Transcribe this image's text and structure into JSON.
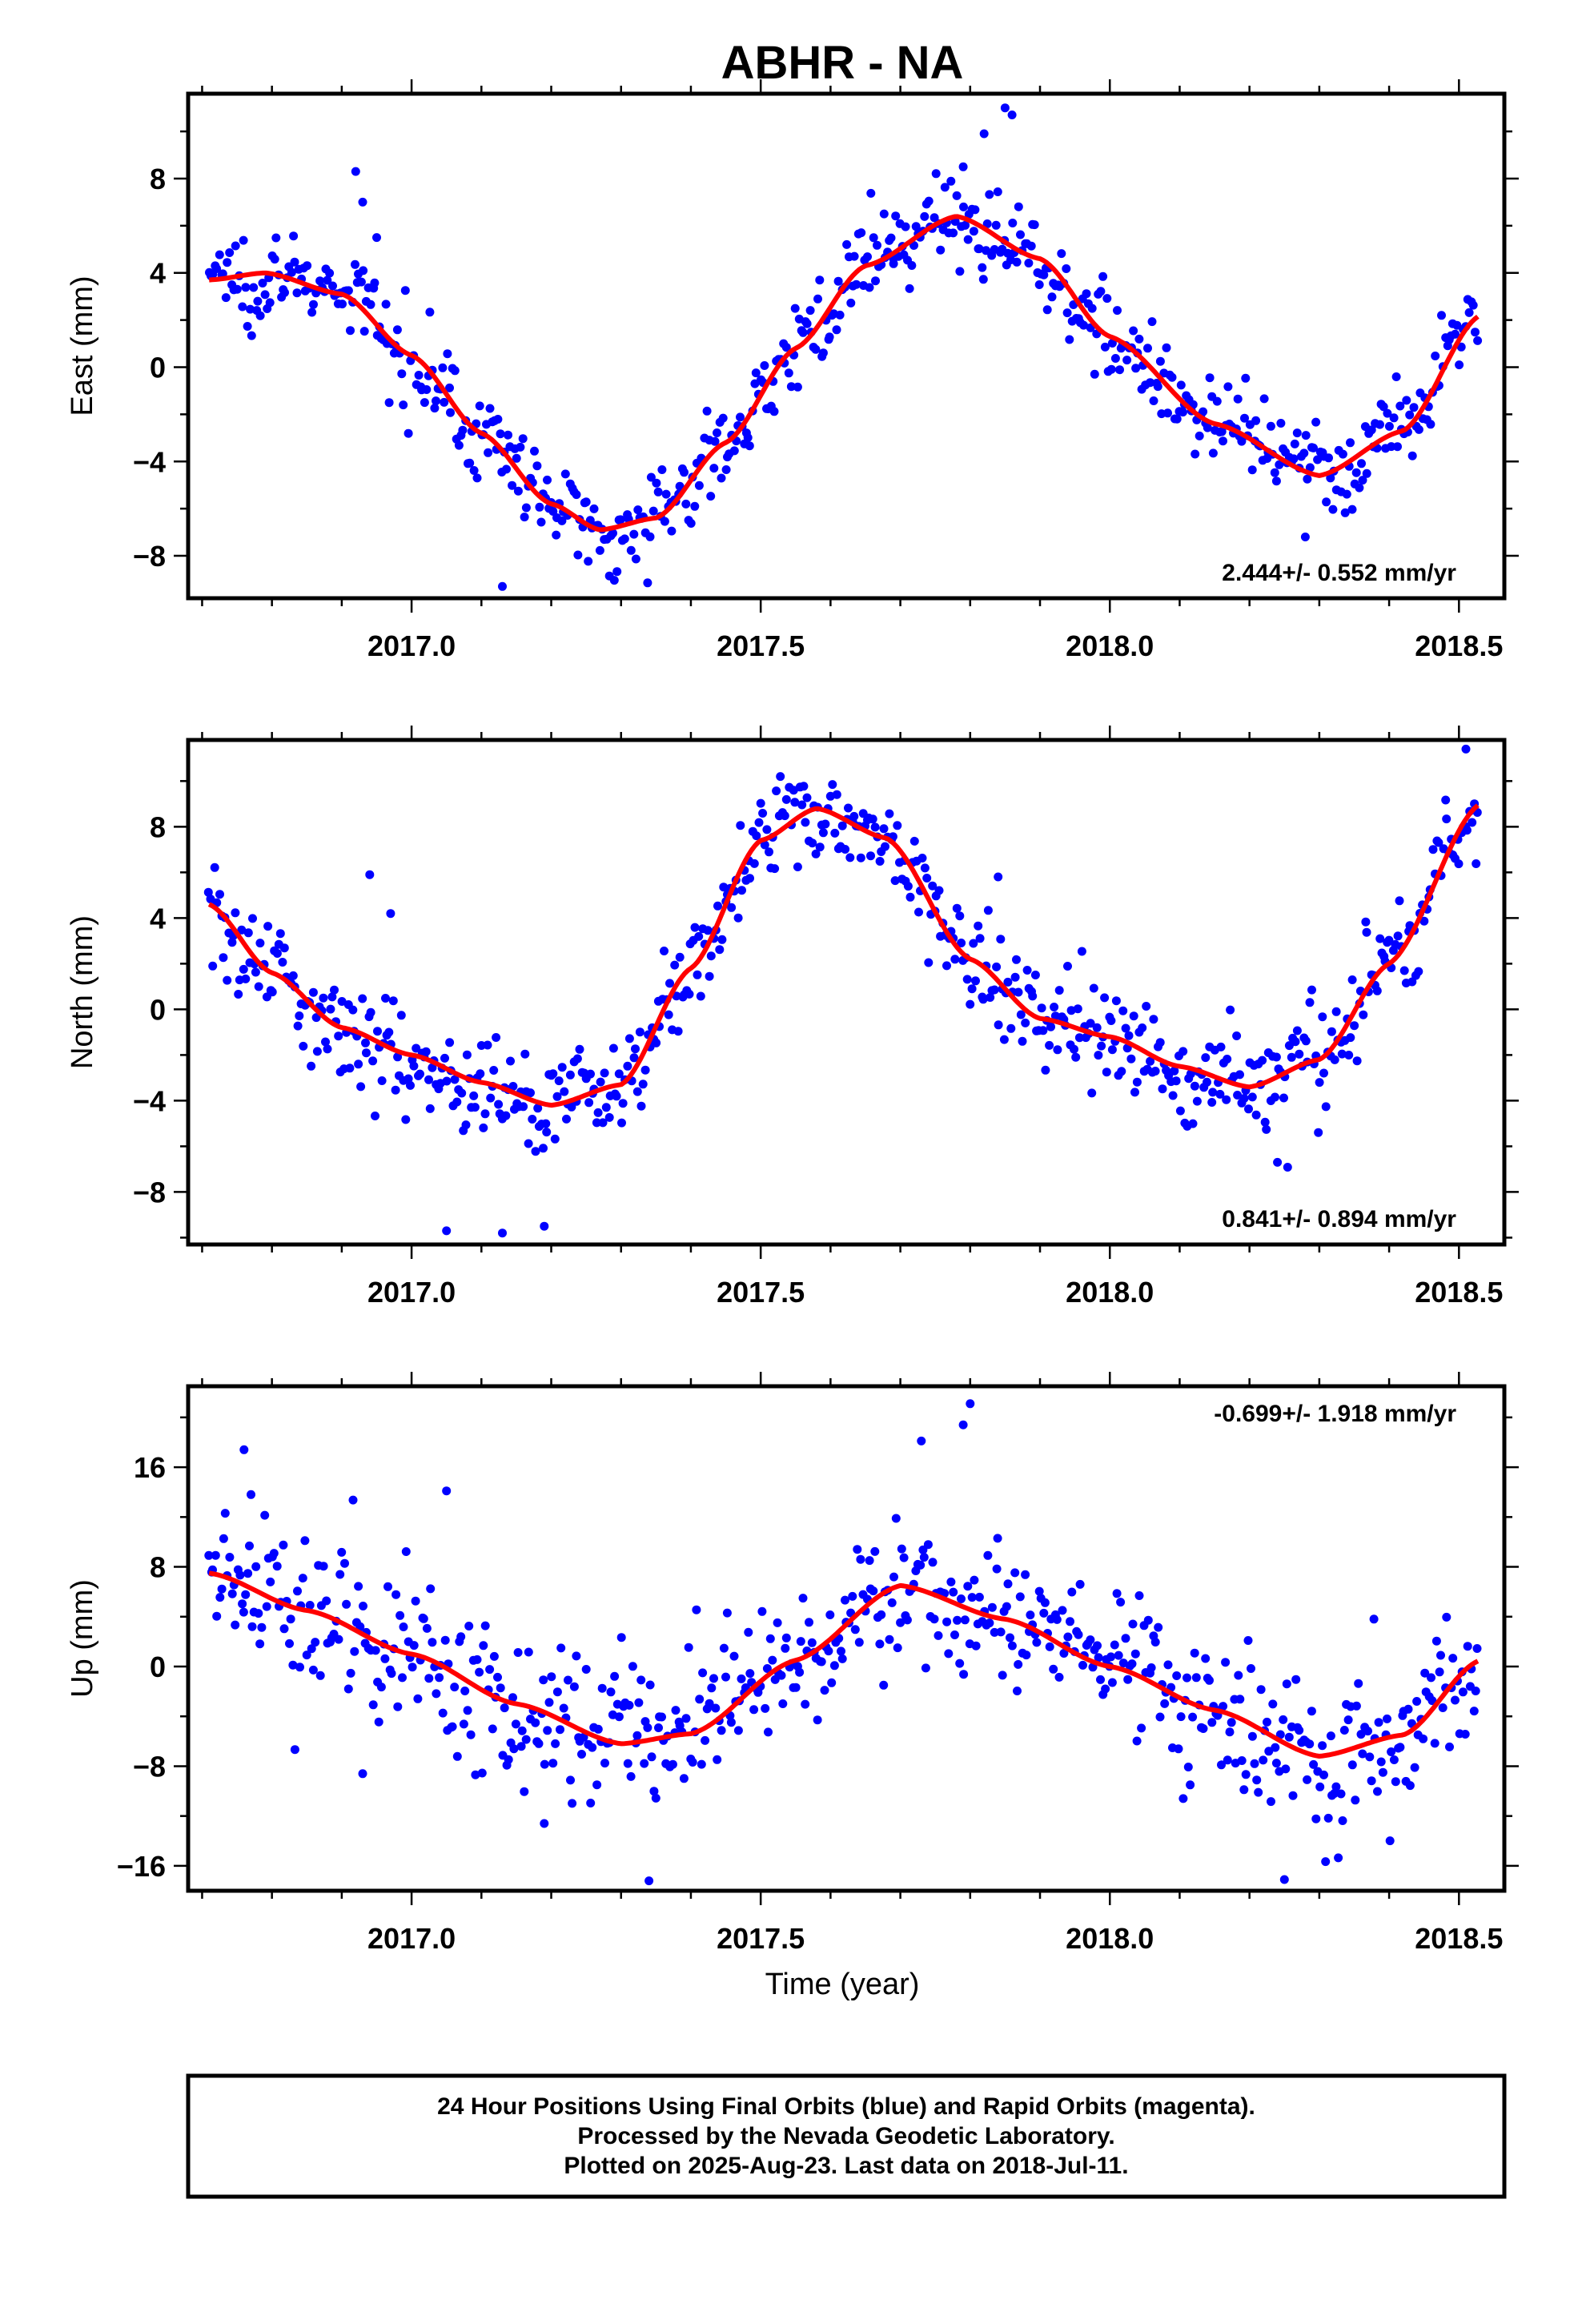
{
  "title": "ABHR - NA",
  "x_axis_label": "Time (year)",
  "footer": {
    "lines": [
      "24 Hour Positions Using Final Orbits (blue) and Rapid Orbits (magenta).",
      "Processed by the Nevada Geodetic Laboratory.",
      "Plotted on 2025-Aug-23. Last data on 2018-Jul-11."
    ]
  },
  "colors": {
    "points": "#0000ff",
    "fit": "#ff0000",
    "frame": "#000000"
  },
  "chart_data": [
    {
      "type": "scatter",
      "name": "east",
      "ylabel": "East (mm)",
      "rate_label": "2.444+/- 0.552 mm/yr",
      "rate_position": "bottom-right",
      "xlim": [
        2016.68,
        2018.565
      ],
      "ylim": [
        -9.8,
        11.6
      ],
      "x_ticks": [
        2017.0,
        2017.5,
        2018.0,
        2018.5
      ],
      "x_tick_labels": [
        "2017.0",
        "2017.5",
        "2018.0",
        "2018.5"
      ],
      "y_ticks": [
        -8,
        -4,
        0,
        4,
        8
      ],
      "y_tick_labels": [
        "−8",
        "−4",
        "0",
        "4",
        "8"
      ],
      "fit_knots": {
        "x": [
          2016.71,
          2016.79,
          2016.9,
          2017.0,
          2017.1,
          2017.2,
          2017.27,
          2017.35,
          2017.45,
          2017.55,
          2017.65,
          2017.78,
          2017.9,
          2018.0,
          2018.15,
          2018.3,
          2018.42,
          2018.53
        ],
        "y": [
          3.7,
          4.0,
          3.1,
          0.5,
          -2.8,
          -5.8,
          -6.9,
          -6.4,
          -3.2,
          0.8,
          4.3,
          6.4,
          4.6,
          1.3,
          -2.4,
          -4.6,
          -2.7,
          2.2
        ]
      },
      "noise": 1.05,
      "outliers": [
        [
          2016.92,
          8.3
        ],
        [
          2016.93,
          7.0
        ],
        [
          2016.95,
          5.5
        ],
        [
          2017.13,
          -9.3
        ],
        [
          2017.82,
          9.9
        ],
        [
          2017.85,
          11.0
        ],
        [
          2017.86,
          10.7
        ],
        [
          2017.69,
          4.6
        ],
        [
          2017.79,
          8.5
        ],
        [
          2018.28,
          -7.2
        ]
      ]
    },
    {
      "type": "scatter",
      "name": "north",
      "ylabel": "North (mm)",
      "rate_label": "0.841+/- 0.894 mm/yr",
      "rate_position": "bottom-right",
      "xlim": [
        2016.68,
        2018.565
      ],
      "ylim": [
        -10.3,
        11.8
      ],
      "x_ticks": [
        2017.0,
        2017.5,
        2018.0,
        2018.5
      ],
      "x_tick_labels": [
        "2017.0",
        "2017.5",
        "2018.0",
        "2018.5"
      ],
      "y_ticks": [
        -8,
        -4,
        0,
        4,
        8
      ],
      "y_tick_labels": [
        "−8",
        "−4",
        "0",
        "4",
        "8"
      ],
      "fit_knots": {
        "x": [
          2016.71,
          2016.8,
          2016.9,
          2017.0,
          2017.1,
          2017.2,
          2017.3,
          2017.4,
          2017.5,
          2017.58,
          2017.68,
          2017.8,
          2017.9,
          2018.0,
          2018.1,
          2018.2,
          2018.3,
          2018.4,
          2018.53
        ],
        "y": [
          4.6,
          1.6,
          -0.8,
          -2.0,
          -3.2,
          -4.2,
          -3.3,
          1.8,
          7.4,
          8.8,
          7.5,
          2.2,
          -0.4,
          -1.2,
          -2.5,
          -3.4,
          -2.2,
          2.0,
          9.0
        ]
      },
      "noise": 1.3,
      "outliers": [
        [
          2016.94,
          5.9
        ],
        [
          2016.97,
          4.2
        ],
        [
          2017.05,
          -9.7
        ],
        [
          2017.13,
          -9.8
        ],
        [
          2017.19,
          -9.5
        ],
        [
          2018.51,
          11.4
        ],
        [
          2018.24,
          -6.7
        ],
        [
          2017.84,
          5.8
        ]
      ]
    },
    {
      "type": "scatter",
      "name": "up",
      "ylabel": "Up (mm)",
      "rate_label": "-0.699+/- 1.918 mm/yr",
      "rate_position": "top-right",
      "xlim": [
        2016.68,
        2018.565
      ],
      "ylim": [
        -18.0,
        22.5
      ],
      "x_ticks": [
        2017.0,
        2017.5,
        2018.0,
        2018.5
      ],
      "x_tick_labels": [
        "2017.0",
        "2017.5",
        "2018.0",
        "2018.5"
      ],
      "y_ticks": [
        -16,
        -8,
        0,
        8,
        16
      ],
      "y_tick_labels": [
        "−16",
        "−8",
        "0",
        "8",
        "16"
      ],
      "fit_knots": {
        "x": [
          2016.71,
          2016.85,
          2017.0,
          2017.15,
          2017.3,
          2017.4,
          2017.55,
          2017.7,
          2017.85,
          2018.0,
          2018.15,
          2018.3,
          2018.42,
          2018.53
        ],
        "y": [
          7.5,
          4.5,
          1.0,
          -3.0,
          -6.2,
          -5.4,
          0.5,
          6.5,
          3.8,
          0.0,
          -3.5,
          -7.2,
          -5.5,
          0.5
        ]
      },
      "noise": 3.4,
      "outliers": [
        [
          2016.76,
          17.4
        ],
        [
          2016.77,
          13.8
        ],
        [
          2017.05,
          14.1
        ],
        [
          2017.8,
          21.1
        ],
        [
          2017.79,
          19.4
        ],
        [
          2017.73,
          18.1
        ],
        [
          2017.34,
          -17.2
        ],
        [
          2018.25,
          -17.1
        ],
        [
          2016.93,
          -8.6
        ],
        [
          2017.19,
          -12.6
        ]
      ]
    }
  ]
}
